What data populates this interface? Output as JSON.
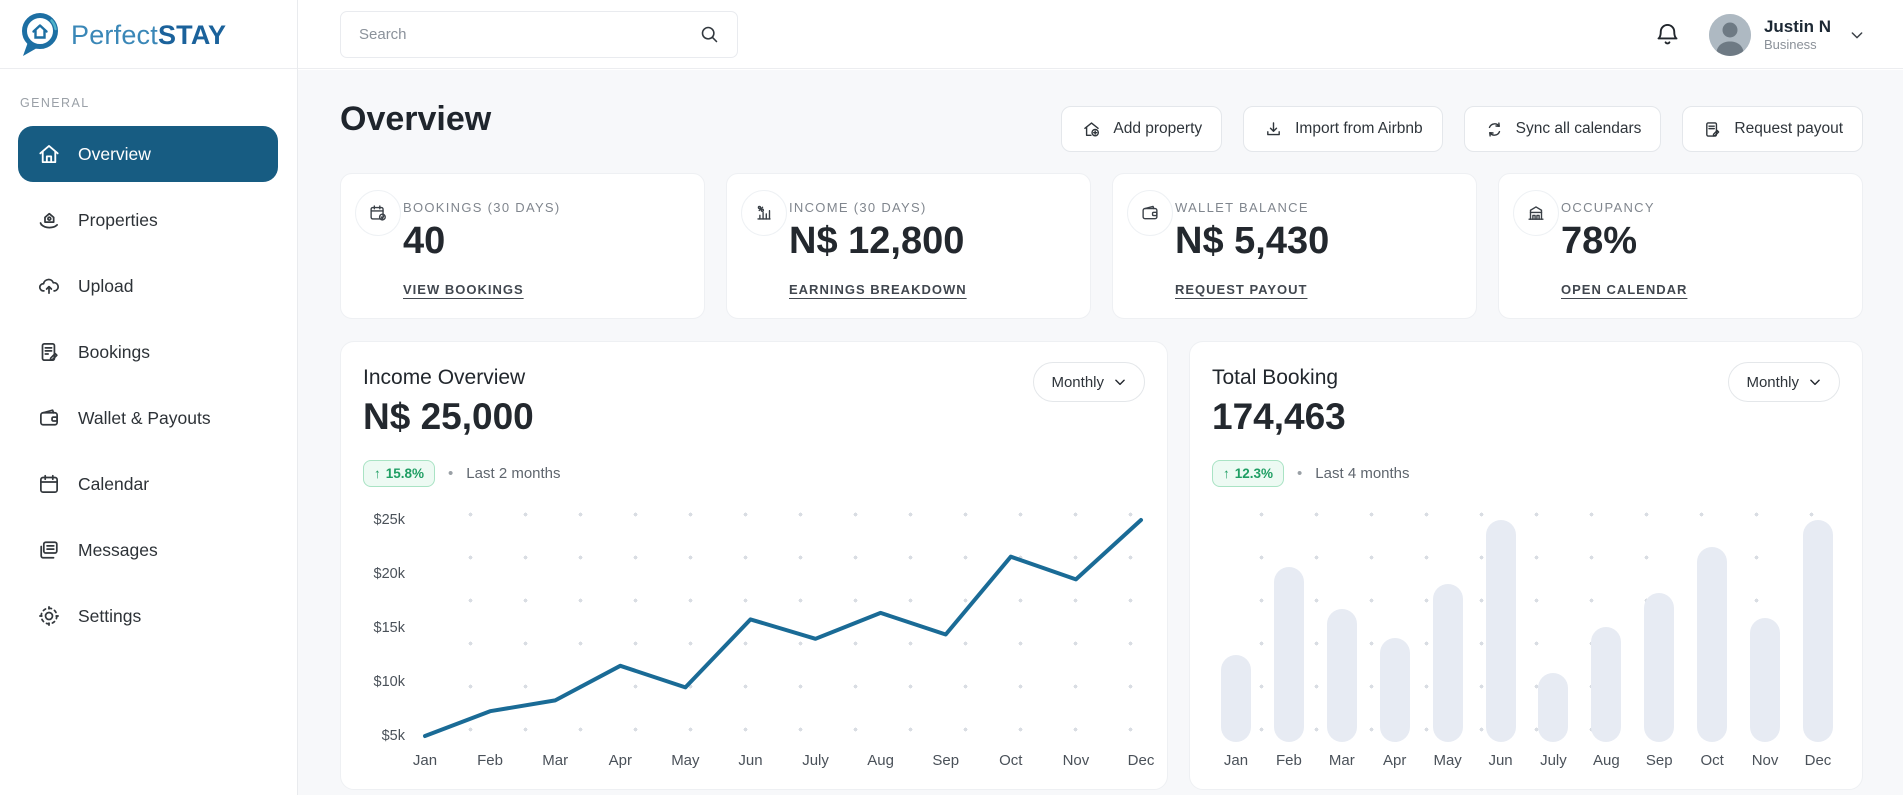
{
  "brand": {
    "name_light": "Perfect",
    "name_bold": "STAY",
    "logo_icon": "map-pin-home-icon"
  },
  "topbar": {
    "search_placeholder": "Search",
    "user": {
      "name": "Justin N",
      "role": "Business"
    }
  },
  "sidebar": {
    "section_label": "GENERAL",
    "items": [
      {
        "label": "Overview",
        "icon": "home-icon",
        "active": true
      },
      {
        "label": "Properties",
        "icon": "property-hand-icon",
        "active": false
      },
      {
        "label": "Upload",
        "icon": "cloud-upload-icon",
        "active": false
      },
      {
        "label": "Bookings",
        "icon": "document-edit-icon",
        "active": false
      },
      {
        "label": "Wallet & Payouts",
        "icon": "wallet-icon",
        "active": false
      },
      {
        "label": "Calendar",
        "icon": "calendar-icon",
        "active": false
      },
      {
        "label": "Messages",
        "icon": "messages-icon",
        "active": false
      },
      {
        "label": "Settings",
        "icon": "gear-icon",
        "active": false
      }
    ]
  },
  "header": {
    "title": "Overview",
    "actions": [
      {
        "label": "Add property",
        "icon": "house-plus-icon"
      },
      {
        "label": "Import from Airbnb",
        "icon": "download-icon"
      },
      {
        "label": "Sync all calendars",
        "icon": "sync-icon"
      },
      {
        "label": "Request payout",
        "icon": "document-pen-icon"
      }
    ]
  },
  "stats": [
    {
      "icon": "calendar-check-icon",
      "label": "BOOKINGS (30 DAYS)",
      "value": "40",
      "link": "VIEW BOOKINGS"
    },
    {
      "icon": "chart-percent-icon",
      "label": "INCOME (30 DAYS)",
      "value": "N$ 12,800",
      "link": "EARNINGS BREAKDOWN"
    },
    {
      "icon": "wallet-icon",
      "label": "WALLET BALANCE",
      "value": "N$ 5,430",
      "link": "REQUEST PAYOUT"
    },
    {
      "icon": "building-icon",
      "label": "OCCUPANCY",
      "value": "78%",
      "link": "OPEN CALENDAR"
    }
  ],
  "income_panel": {
    "title": "Income Overview",
    "value": "N$ 25,000",
    "change_arrow": "↑",
    "change": "15.8%",
    "bullet": "•",
    "note": "Last 2 months",
    "dropdown": "Monthly"
  },
  "booking_panel": {
    "title": "Total Booking",
    "value": "174,463",
    "change_arrow": "↑",
    "change": "12.3%",
    "bullet": "•",
    "note": "Last 4 months",
    "dropdown": "Monthly"
  },
  "chart_data": [
    {
      "type": "line",
      "title": "Income Overview",
      "x": [
        "Jan",
        "Feb",
        "Mar",
        "Apr",
        "May",
        "Jun",
        "July",
        "Aug",
        "Sep",
        "Oct",
        "Nov",
        "Dec"
      ],
      "values": [
        5000,
        7300,
        8300,
        11500,
        9500,
        15800,
        14000,
        16400,
        14400,
        21600,
        19500,
        25000
      ],
      "y_ticks": [
        {
          "label": "$25k",
          "value": 25000
        },
        {
          "label": "$20k",
          "value": 20000
        },
        {
          "label": "$15k",
          "value": 15000
        },
        {
          "label": "$10k",
          "value": 10000
        },
        {
          "label": "$5k",
          "value": 5000
        }
      ],
      "ylim": [
        5000,
        25000
      ],
      "line_color": "#1A6B96",
      "grid": "dotted",
      "legend": false
    },
    {
      "type": "bar",
      "title": "Total Booking",
      "x": [
        "Jan",
        "Feb",
        "Mar",
        "Apr",
        "May",
        "Jun",
        "July",
        "Aug",
        "Sep",
        "Oct",
        "Nov",
        "Dec"
      ],
      "values_relative_pct": [
        39,
        79,
        60,
        47,
        71,
        100,
        31,
        52,
        67,
        88,
        56,
        100
      ],
      "bar_color": "#E7EBF3",
      "grid": "dotted",
      "y_axis": "hidden",
      "legend": false
    }
  ],
  "colors": {
    "sidebar_active": "#175C82",
    "line": "#1A6B96",
    "positive_text": "#1F9E63",
    "positive_bg": "#EDFAF3",
    "bar": "#E7EBF3",
    "page_bg": "#F7F8FA",
    "logo_light": "#3A87B7",
    "logo_bold": "#1B629B"
  }
}
